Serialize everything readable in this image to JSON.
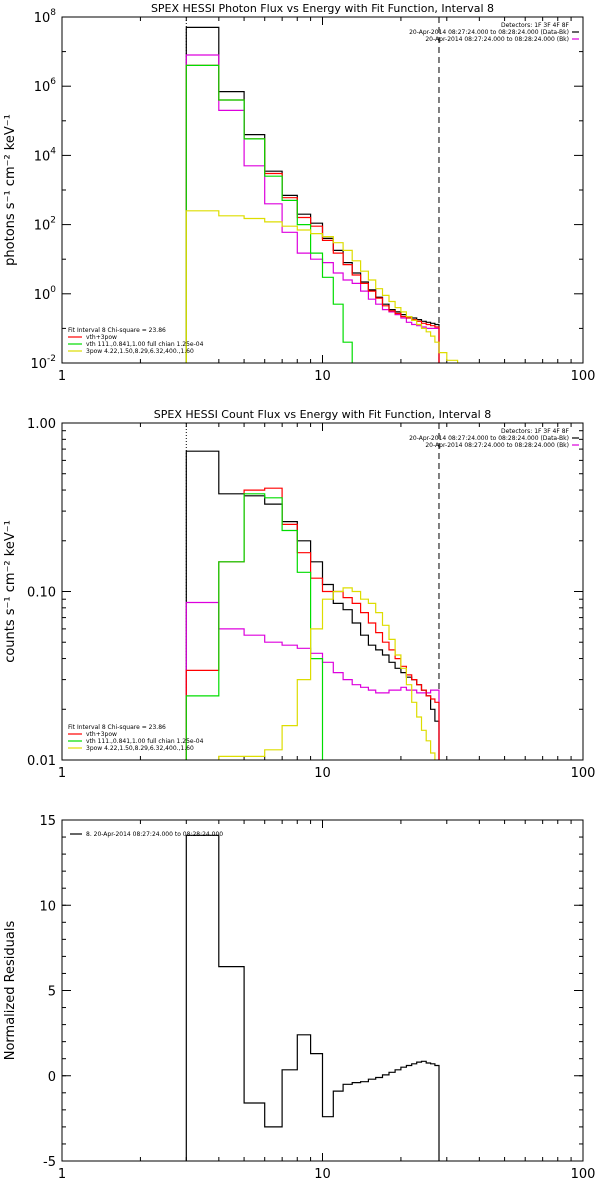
{
  "chart_data": [
    {
      "type": "line",
      "title": "SPEX HESSI Photon Flux vs Energy with Fit Function, Interval 8",
      "ylabel": "photons s⁻¹ cm⁻² keV⁻¹",
      "xlabel": "",
      "xscale": "log",
      "yscale": "log",
      "xlim": [
        1,
        100
      ],
      "ylim": [
        0.01,
        100000000
      ],
      "xticks": [
        {
          "v": 1,
          "label": "1"
        },
        {
          "v": 10,
          "label": "10"
        },
        {
          "v": 100,
          "label": "100"
        }
      ],
      "yticks": [
        {
          "v": 0.01,
          "base": "10",
          "exp": "-2"
        },
        {
          "v": 1,
          "base": "10",
          "exp": "0"
        },
        {
          "v": 100,
          "base": "10",
          "exp": "2"
        },
        {
          "v": 10000,
          "base": "10",
          "exp": "4"
        },
        {
          "v": 1000000,
          "base": "10",
          "exp": "6"
        },
        {
          "v": 100000000,
          "base": "10",
          "exp": "8"
        }
      ],
      "vlines": [
        {
          "x": 3.0,
          "style": "dotted"
        },
        {
          "x": 28.0,
          "style": "dashed"
        }
      ],
      "info_lines": [
        "Detectors: 1F 3F 4F 8F",
        "20-Apr-2014 08:27:24.000 to 08:28:24.000 (Data-Bk)",
        "20-Apr-2014 08:27:24.000 to 08:28:24.000 (Bk)"
      ],
      "info_colors": [
        "#000000",
        "#dd00dd"
      ],
      "legend_header": "Fit Interval 8   Chi-square = 23.86",
      "legend": [
        {
          "label": "vth+3pow",
          "color": "#ff0000"
        },
        {
          "label": "vth 111.,0.841,1.00  full chian 1.25e-04",
          "color": "#00dd00"
        },
        {
          "label": "3pow 4.22,1.50,8.29,6.32,400.,1.60",
          "color": "#dddd00"
        }
      ],
      "series": [
        {
          "name": "Data-Bk",
          "color": "#000000",
          "edges": [
            3,
            4,
            5,
            6,
            7,
            8,
            9,
            10,
            11,
            12,
            13,
            14,
            15,
            16,
            17,
            18,
            19,
            20,
            21,
            22,
            23,
            24,
            25,
            26,
            27,
            28
          ],
          "values": [
            50000000,
            700000,
            40000,
            3500,
            700,
            200,
            110,
            40,
            18,
            8,
            4,
            2.2,
            1.3,
            0.8,
            0.5,
            0.35,
            0.3,
            0.25,
            0.22,
            0.2,
            0.18,
            0.16,
            0.15,
            0.14,
            0.13
          ]
        },
        {
          "name": "Bk",
          "color": "#dd00dd",
          "edges": [
            3,
            4,
            5,
            6,
            7,
            8,
            9,
            10,
            11,
            12,
            13,
            14,
            15,
            16,
            17,
            18,
            19,
            20,
            21,
            22,
            23,
            24,
            25,
            26,
            27,
            28
          ],
          "values": [
            8000000,
            200000,
            5000,
            400,
            60,
            15,
            10,
            8,
            4,
            2.5,
            2,
            1.2,
            0.7,
            0.5,
            0.35,
            0.3,
            0.25,
            0.2,
            0.15,
            0.13,
            0.12,
            0.11,
            0.1,
            0.1,
            0.1
          ]
        },
        {
          "name": "vth+3pow",
          "color": "#ff0000",
          "edges": [
            3,
            4,
            5,
            6,
            7,
            8,
            9,
            10,
            11,
            12,
            13,
            14,
            15,
            16,
            17,
            18,
            19,
            20,
            21,
            22,
            23,
            24,
            25,
            26,
            27,
            28
          ],
          "values": [
            4000000,
            400000,
            30000,
            3000,
            600,
            160,
            90,
            35,
            15,
            7,
            3.5,
            2,
            1.2,
            0.75,
            0.45,
            0.32,
            0.27,
            0.22,
            0.2,
            0.18,
            0.16,
            0.14,
            0.13,
            0.12,
            0.11
          ]
        },
        {
          "name": "vth",
          "color": "#00dd00",
          "edges": [
            3,
            4,
            5,
            6,
            7,
            8,
            9,
            10,
            11,
            12,
            13
          ],
          "values": [
            4000000,
            400000,
            30000,
            2500,
            500,
            100,
            15,
            3,
            0.5,
            0.04
          ]
        },
        {
          "name": "3pow",
          "color": "#dddd00",
          "edges": [
            3,
            4,
            5,
            6,
            7,
            8,
            9,
            10,
            11,
            12,
            13,
            14,
            15,
            16,
            17,
            18,
            19,
            20,
            21,
            22,
            23,
            24,
            25,
            26,
            27,
            28,
            30,
            33
          ],
          "values": [
            250,
            180,
            150,
            120,
            90,
            70,
            55,
            45,
            30,
            18,
            9,
            4.5,
            2.5,
            1.4,
            0.9,
            0.6,
            0.4,
            0.3,
            0.22,
            0.17,
            0.13,
            0.1,
            0.08,
            0.06,
            0.04,
            0.02,
            0.012
          ]
        }
      ]
    },
    {
      "type": "line",
      "title": "SPEX HESSI Count Flux vs Energy with Fit Function, Interval 8",
      "ylabel": "counts s⁻¹ cm⁻² keV⁻¹",
      "xlabel": "",
      "xscale": "log",
      "yscale": "log",
      "xlim": [
        1,
        100
      ],
      "ylim": [
        0.01,
        1.0
      ],
      "xticks": [
        {
          "v": 1,
          "label": "1"
        },
        {
          "v": 10,
          "label": "10"
        },
        {
          "v": 100,
          "label": "100"
        }
      ],
      "yticks": [
        {
          "v": 0.01,
          "label": "0.01"
        },
        {
          "v": 0.1,
          "label": "0.10"
        },
        {
          "v": 1.0,
          "label": "1.00"
        }
      ],
      "vlines": [
        {
          "x": 3.0,
          "style": "dotted"
        },
        {
          "x": 28.0,
          "style": "dashed"
        }
      ],
      "info_lines": [
        "Detectors: 1F 3F 4F 8F",
        "20-Apr-2014 08:27:24.000 to 08:28:24.000 (Data-Bk)",
        "20-Apr-2014 08:27:24.000 to 08:28:24.000 (Bk)"
      ],
      "info_colors": [
        "#000000",
        "#dd00dd"
      ],
      "legend_header": "Fit Interval 8   Chi-square = 23.86",
      "legend": [
        {
          "label": "vth+3pow",
          "color": "#ff0000"
        },
        {
          "label": "vth 111.,0.841,1.00  full chian 1.25e-04",
          "color": "#00dd00"
        },
        {
          "label": "3pow 4.22,1.50,8.29,6.32,400.,1.60",
          "color": "#dddd00"
        }
      ],
      "series": [
        {
          "name": "Data-Bk",
          "color": "#000000",
          "edges": [
            3,
            4,
            5,
            6,
            7,
            8,
            9,
            10,
            11,
            12,
            13,
            14,
            15,
            16,
            17,
            18,
            19,
            20,
            21,
            22,
            23,
            24,
            25,
            26,
            27,
            28
          ],
          "values": [
            0.68,
            0.38,
            0.37,
            0.33,
            0.26,
            0.2,
            0.15,
            0.11,
            0.085,
            0.078,
            0.065,
            0.055,
            0.048,
            0.045,
            0.042,
            0.038,
            0.035,
            0.033,
            0.031,
            0.03,
            0.028,
            0.026,
            0.024,
            0.02,
            0.017
          ]
        },
        {
          "name": "Bk",
          "color": "#dd00dd",
          "edges": [
            3,
            4,
            5,
            6,
            7,
            8,
            9,
            10,
            11,
            12,
            13,
            14,
            15,
            16,
            17,
            18,
            19,
            20,
            21,
            22,
            23,
            24,
            25,
            26,
            27,
            28
          ],
          "values": [
            0.086,
            0.06,
            0.055,
            0.05,
            0.048,
            0.046,
            0.043,
            0.038,
            0.033,
            0.03,
            0.028,
            0.027,
            0.026,
            0.025,
            0.025,
            0.026,
            0.026,
            0.027,
            0.026,
            0.026,
            0.025,
            0.025,
            0.025,
            0.026,
            0.026
          ]
        },
        {
          "name": "vth+3pow",
          "color": "#ff0000",
          "edges": [
            3,
            4,
            5,
            6,
            7,
            8,
            9,
            10,
            11,
            12,
            13,
            14,
            15,
            16,
            17,
            18,
            19,
            20,
            21,
            22,
            23,
            24,
            25,
            26,
            27,
            28
          ],
          "values": [
            0.034,
            0.15,
            0.4,
            0.41,
            0.25,
            0.17,
            0.12,
            0.1,
            0.1,
            0.092,
            0.085,
            0.075,
            0.065,
            0.057,
            0.05,
            0.045,
            0.04,
            0.036,
            0.032,
            0.03,
            0.028,
            0.026,
            0.024,
            0.023,
            0.022
          ]
        },
        {
          "name": "vth",
          "color": "#00dd00",
          "edges": [
            3,
            4,
            5,
            6,
            7,
            8,
            9,
            10
          ],
          "values": [
            0.024,
            0.15,
            0.38,
            0.36,
            0.23,
            0.13,
            0.04
          ]
        },
        {
          "name": "3pow",
          "color": "#dddd00",
          "edges": [
            3,
            4,
            5,
            6,
            7,
            8,
            9,
            10,
            11,
            12,
            13,
            14,
            15,
            16,
            17,
            18,
            19,
            20,
            21,
            22,
            23,
            24,
            25,
            26,
            27,
            28
          ],
          "values": [
            0.0095,
            0.0105,
            0.0105,
            0.0115,
            0.016,
            0.03,
            0.06,
            0.09,
            0.1,
            0.105,
            0.1,
            0.09,
            0.085,
            0.075,
            0.063,
            0.052,
            0.042,
            0.035,
            0.028,
            0.022,
            0.018,
            0.015,
            0.013,
            0.011,
            0.009
          ]
        }
      ]
    },
    {
      "type": "line",
      "title": "",
      "ylabel": "Normalized Residuals",
      "xlabel": "",
      "xscale": "log",
      "yscale": "linear",
      "xlim": [
        1,
        100
      ],
      "ylim": [
        -5,
        15
      ],
      "xticks": [
        {
          "v": 1,
          "label": "1"
        },
        {
          "v": 10,
          "label": "10"
        },
        {
          "v": 100,
          "label": "100"
        }
      ],
      "yticks": [
        {
          "v": -5,
          "label": "-5"
        },
        {
          "v": 0,
          "label": "0"
        },
        {
          "v": 5,
          "label": "5"
        },
        {
          "v": 10,
          "label": "10"
        },
        {
          "v": 15,
          "label": "15"
        }
      ],
      "legend": [
        {
          "label": "8. 20-Apr-2014 08:27:24.000 to 08:28:24.000",
          "color": "#000000"
        }
      ],
      "series": [
        {
          "name": "8. 20-Apr-2014 08:27:24.000 to 08:28:24.000",
          "color": "#000000",
          "edges": [
            3,
            4,
            5,
            6,
            7,
            8,
            9,
            10,
            11,
            12,
            13,
            14,
            15,
            16,
            17,
            18,
            19,
            20,
            21,
            22,
            23,
            24,
            25,
            26,
            27,
            28
          ],
          "values": [
            14.1,
            6.4,
            -1.6,
            -3.0,
            0.35,
            2.4,
            1.3,
            -2.4,
            -0.9,
            -0.5,
            -0.4,
            -0.35,
            -0.2,
            -0.1,
            0.05,
            0.2,
            0.35,
            0.5,
            0.6,
            0.7,
            0.8,
            0.85,
            0.75,
            0.7,
            0.6
          ]
        }
      ]
    }
  ]
}
